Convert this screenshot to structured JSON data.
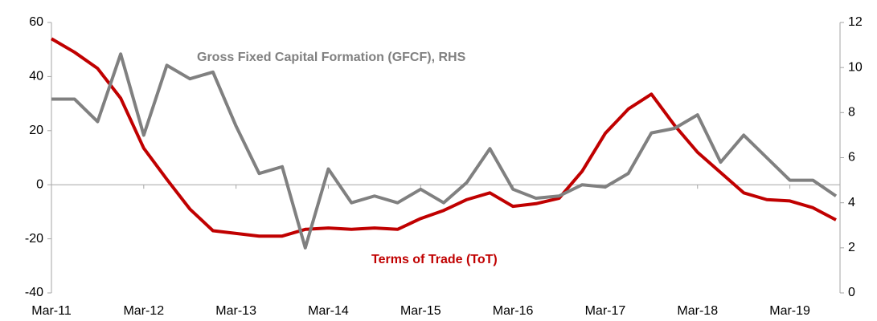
{
  "chart_data": {
    "type": "line",
    "categories": [
      "Mar-11",
      null,
      null,
      null,
      "Mar-12",
      null,
      null,
      null,
      "Mar-13",
      null,
      null,
      null,
      "Mar-14",
      null,
      null,
      null,
      "Mar-15",
      null,
      null,
      null,
      "Mar-16",
      null,
      null,
      null,
      "Mar-17",
      null,
      null,
      null,
      "Mar-18",
      null,
      null,
      null,
      "Mar-19",
      null,
      null
    ],
    "series": [
      {
        "name": "Terms of Trade (ToT)",
        "color": "#c00000",
        "axis": "y",
        "values": [
          54,
          49,
          43,
          32,
          13.5,
          2,
          -9,
          -17,
          -18,
          -19,
          -19,
          -16.5,
          -16,
          -16.5,
          -16,
          -16.5,
          -12.5,
          -9.5,
          -5.5,
          -3,
          -8,
          -7,
          -5,
          5,
          19,
          28,
          33.5,
          22,
          12,
          4.5,
          -3,
          -5.5,
          -6,
          -8.5,
          -13
        ]
      },
      {
        "name": "Gross Fixed Capital Formation (GFCF), RHS",
        "color": "#808080",
        "axis": "y2",
        "values": [
          8.6,
          8.6,
          7.6,
          10.6,
          7.0,
          10.1,
          9.5,
          9.8,
          7.4,
          5.3,
          5.6,
          2.0,
          5.5,
          4.0,
          4.3,
          4.0,
          4.6,
          4.0,
          4.9,
          6.4,
          4.6,
          4.2,
          4.3,
          4.8,
          4.7,
          5.3,
          7.1,
          7.3,
          7.9,
          5.8,
          7.0,
          6.0,
          5.0,
          5.0,
          4.3
        ]
      }
    ],
    "ylim": [
      -40,
      60
    ],
    "yticks": [
      -40,
      -20,
      0,
      20,
      40,
      60
    ],
    "y2lim": [
      0,
      12
    ],
    "y2ticks": [
      0,
      2,
      4,
      6,
      8,
      10,
      12
    ]
  }
}
